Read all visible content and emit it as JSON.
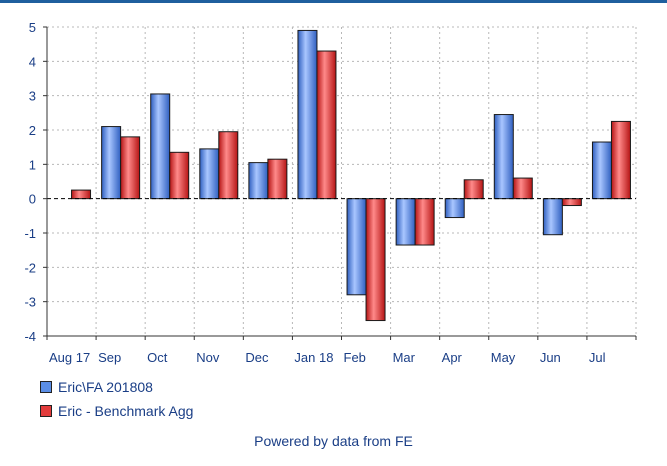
{
  "chart_data": {
    "type": "bar",
    "categories": [
      "Aug 17",
      "Sep",
      "Oct",
      "Nov",
      "Dec",
      "Jan 18",
      "Feb",
      "Mar",
      "Apr",
      "May",
      "Jun",
      "Jul"
    ],
    "series": [
      {
        "name": "Eric\\FA 201808",
        "color": "#5b8ee6",
        "values": [
          null,
          2.1,
          3.05,
          1.45,
          1.05,
          4.9,
          -2.8,
          -1.35,
          -0.55,
          2.45,
          -1.05,
          1.65
        ]
      },
      {
        "name": "Eric - Benchmark Agg",
        "color": "#e23c3c",
        "values": [
          0.25,
          1.8,
          1.35,
          1.95,
          1.15,
          4.3,
          -3.55,
          -1.35,
          0.55,
          0.6,
          -0.2,
          2.25
        ]
      }
    ],
    "ylim": [
      -4,
      5
    ],
    "yticks": [
      5,
      4,
      3,
      2,
      1,
      0,
      -1,
      -2,
      -3,
      -4
    ],
    "grid": true,
    "legend_position": "bottom-left"
  },
  "footer": "Powered by data from FE"
}
